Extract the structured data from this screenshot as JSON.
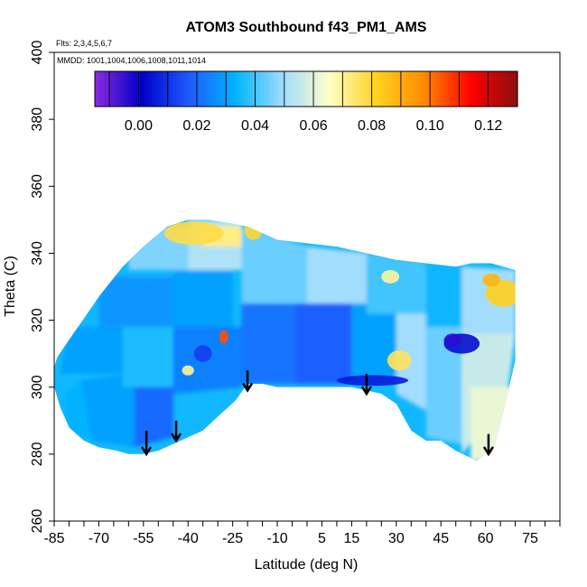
{
  "chart_data": {
    "type": "heatmap",
    "title": "ATOM3 Southbound f43_PM1_AMS",
    "subtitle_flights": "Flts: 2,3,4,5,6,7",
    "subtitle_dates": "MMDD: 1001,1004,1006,1008,1011,1014",
    "xlabel": "Latitude (deg N)",
    "ylabel": "Theta (C)",
    "xlim": [
      -85,
      85
    ],
    "ylim": [
      260,
      400
    ],
    "x_tick_labels": [
      "-85",
      "-70",
      "-55",
      "-40",
      "-25",
      "-10",
      "5",
      "15",
      "30",
      "45",
      "60",
      "75"
    ],
    "x_tick_values": [
      -85,
      -70,
      -55,
      -40,
      -25,
      -10,
      5,
      15,
      30,
      45,
      60,
      75
    ],
    "y_tick_values": [
      260,
      280,
      300,
      320,
      340,
      360,
      380,
      400
    ],
    "y_tick_labels": [
      "260",
      "280",
      "300",
      "320",
      "340",
      "360",
      "380",
      "400"
    ],
    "colorbar": {
      "range": [
        -0.015,
        0.13
      ],
      "tick_values": [
        0.0,
        0.02,
        0.04,
        0.06,
        0.08,
        0.1,
        0.12
      ],
      "tick_labels": [
        "0.00",
        "0.02",
        "0.04",
        "0.06",
        "0.08",
        "0.10",
        "0.12"
      ],
      "colors": [
        "#8a2be2",
        "#0000c8",
        "#1e5aff",
        "#00b4ff",
        "#a0dcff",
        "#ffffc8",
        "#ffd21e",
        "#ff8c00",
        "#ff0000",
        "#8b1010"
      ]
    },
    "coverage_outline": {
      "lat": [
        -85,
        -84,
        -77,
        -70,
        -62,
        -55,
        -47,
        -40,
        -33,
        -26,
        -20,
        -10,
        0,
        10,
        20,
        30,
        40,
        50,
        55,
        62,
        70,
        70,
        67,
        63,
        57,
        50,
        45,
        40,
        35,
        30,
        25,
        20,
        15,
        10,
        5,
        0,
        -5,
        -10,
        -15,
        -20,
        -24,
        -29,
        -35,
        -40,
        -45,
        -50,
        -55,
        -60,
        -64,
        -70,
        -75,
        -80,
        -83,
        -85
      ],
      "theta": [
        306,
        309,
        318,
        327,
        336,
        342,
        348,
        350,
        350,
        349,
        348,
        344,
        343,
        342,
        340,
        338,
        337,
        336,
        337,
        337,
        335,
        308,
        296,
        282,
        278,
        281,
        284,
        284,
        287,
        295,
        298,
        299,
        300,
        300,
        300,
        300,
        300,
        300,
        301,
        301,
        296,
        292,
        287,
        285,
        283,
        281,
        280,
        280,
        281,
        282,
        284,
        288,
        294,
        300
      ]
    },
    "regions": [
      {
        "lat": [
          -82,
          -76,
          -72,
          -80
        ],
        "theta": [
          298,
          302,
          284,
          286
        ],
        "value": 0.033
      },
      {
        "lat": [
          -76,
          -58,
          -58,
          -72
        ],
        "theta": [
          302,
          304,
          282,
          284
        ],
        "value": 0.03
      },
      {
        "lat": [
          -58,
          -45,
          -45,
          -58
        ],
        "theta": [
          304,
          304,
          285,
          282
        ],
        "value": 0.02
      },
      {
        "lat": [
          -80,
          -62,
          -62,
          -83
        ],
        "theta": [
          318,
          318,
          304,
          304
        ],
        "value": 0.03
      },
      {
        "lat": [
          -70,
          -45,
          -45,
          -70
        ],
        "theta": [
          333,
          333,
          318,
          318
        ],
        "value": 0.028
      },
      {
        "lat": [
          -62,
          -45,
          -45,
          -62
        ],
        "theta": [
          318,
          318,
          300,
          300
        ],
        "value": 0.036
      },
      {
        "lat": [
          -45,
          -22,
          -22,
          -45
        ],
        "theta": [
          318,
          318,
          300,
          298
        ],
        "value": 0.024
      },
      {
        "lat": [
          -45,
          -25,
          -25,
          -45
        ],
        "theta": [
          335,
          335,
          318,
          318
        ],
        "value": 0.03
      },
      {
        "lat": [
          -60,
          -40,
          -40,
          -60
        ],
        "theta": [
          348,
          348,
          335,
          335
        ],
        "value": 0.046
      },
      {
        "lat": [
          -40,
          -22,
          -22,
          -40
        ],
        "theta": [
          350,
          350,
          335,
          335
        ],
        "value": 0.052
      },
      {
        "lat": [
          -35,
          -22,
          -22,
          -35
        ],
        "theta": [
          348,
          348,
          342,
          342
        ],
        "value": 0.072
      },
      {
        "lat": [
          -22,
          0,
          0,
          -22
        ],
        "theta": [
          348,
          342,
          325,
          325
        ],
        "value": 0.044
      },
      {
        "lat": [
          -22,
          0,
          0,
          -22
        ],
        "theta": [
          325,
          325,
          301,
          301
        ],
        "value": 0.022
      },
      {
        "lat": [
          -4,
          15,
          15,
          -4
        ],
        "theta": [
          325,
          325,
          301,
          301
        ],
        "value": 0.018
      },
      {
        "lat": [
          0,
          20,
          20,
          0
        ],
        "theta": [
          342,
          340,
          325,
          325
        ],
        "value": 0.05
      },
      {
        "lat": [
          15,
          30,
          30,
          15
        ],
        "theta": [
          325,
          325,
          301,
          301
        ],
        "value": 0.03
      },
      {
        "lat": [
          20,
          40,
          40,
          20
        ],
        "theta": [
          340,
          337,
          322,
          322
        ],
        "value": 0.04
      },
      {
        "lat": [
          30,
          40,
          40,
          30
        ],
        "theta": [
          322,
          322,
          293,
          298
        ],
        "value": 0.05
      },
      {
        "lat": [
          40,
          52,
          52,
          40
        ],
        "theta": [
          337,
          336,
          318,
          318
        ],
        "value": 0.034
      },
      {
        "lat": [
          40,
          52,
          52,
          40
        ],
        "theta": [
          318,
          318,
          283,
          285
        ],
        "value": 0.044
      },
      {
        "lat": [
          52,
          70,
          70,
          52
        ],
        "theta": [
          336,
          335,
          316,
          316
        ],
        "value": 0.05
      },
      {
        "lat": [
          52,
          70,
          67,
          52
        ],
        "theta": [
          316,
          316,
          296,
          280
        ],
        "value": 0.056
      },
      {
        "lat": [
          55,
          70,
          70,
          55
        ],
        "theta": [
          300,
          300,
          278,
          278
        ],
        "value": 0.062
      }
    ],
    "features": [
      {
        "lat": -38,
        "theta": 346,
        "rlat": 10,
        "rtheta": 3.5,
        "value": 0.078
      },
      {
        "lat": -18,
        "theta": 347,
        "rlat": 3,
        "rtheta": 3,
        "value": 0.08
      },
      {
        "lat": 66,
        "theta": 328,
        "rlat": 6,
        "rtheta": 4,
        "value": 0.082
      },
      {
        "lat": 62,
        "theta": 332,
        "rlat": 3,
        "rtheta": 2,
        "value": 0.088
      },
      {
        "lat": 31,
        "theta": 308,
        "rlat": 4,
        "rtheta": 3,
        "value": 0.076
      },
      {
        "lat": 52,
        "theta": 313,
        "rlat": 6,
        "rtheta": 3,
        "value": 0.004
      },
      {
        "lat": 49,
        "theta": 314,
        "rlat": 3,
        "rtheta": 2,
        "value": -0.004
      },
      {
        "lat": 22,
        "theta": 302,
        "rlat": 12,
        "rtheta": 1.6,
        "value": 0.006
      },
      {
        "lat": -35,
        "theta": 310,
        "rlat": 3,
        "rtheta": 2.5,
        "value": 0.012
      },
      {
        "lat": -28,
        "theta": 315,
        "rlat": 1.5,
        "rtheta": 2,
        "value": 0.105
      },
      {
        "lat": -40,
        "theta": 305,
        "rlat": 2,
        "rtheta": 1.5,
        "value": 0.07
      },
      {
        "lat": 28,
        "theta": 333,
        "rlat": 3,
        "rtheta": 2,
        "value": 0.07
      }
    ],
    "arrows": [
      {
        "lat": -54,
        "theta_top": 287,
        "theta_bottom": 280
      },
      {
        "lat": -44,
        "theta_top": 290,
        "theta_bottom": 284
      },
      {
        "lat": -20,
        "theta_top": 305,
        "theta_bottom": 299
      },
      {
        "lat": 20,
        "theta_top": 304,
        "theta_bottom": 298
      },
      {
        "lat": 61,
        "theta_top": 286,
        "theta_bottom": 280
      }
    ],
    "grid": false,
    "legend": "top"
  }
}
